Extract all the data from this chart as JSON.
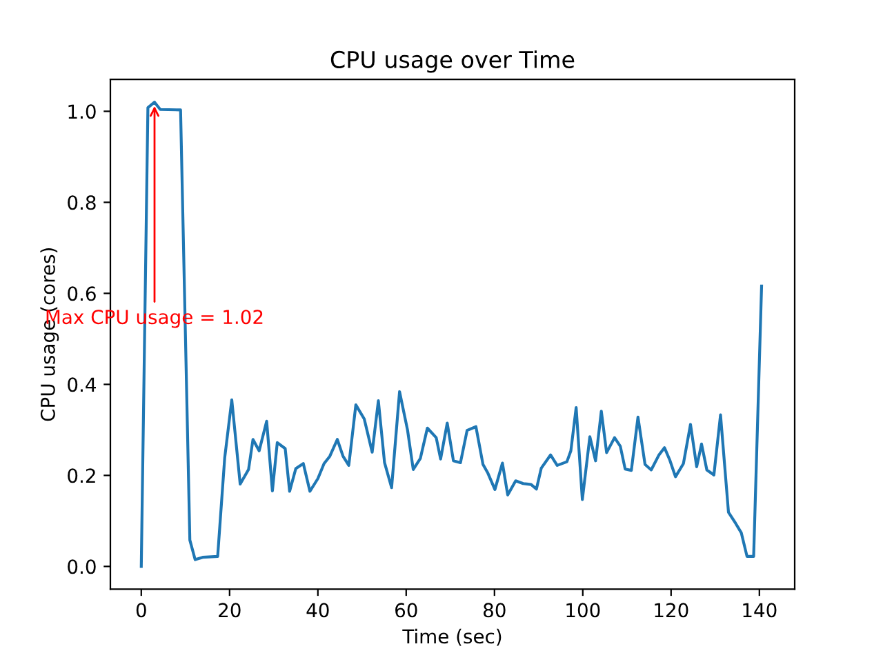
{
  "chart_data": {
    "type": "line",
    "title": "CPU usage over Time",
    "xlabel": "Time (sec)",
    "ylabel": "CPU usage (cores)",
    "x": [
      0,
      1.5,
      3,
      4.3,
      8.9,
      11.0,
      12.2,
      13.9,
      17.3,
      18.9,
      20.5,
      22.4,
      24.3,
      25.3,
      26.7,
      28.4,
      29.7,
      30.8,
      32.6,
      33.6,
      35.0,
      36.7,
      38.2,
      40.0,
      41.4,
      42.7,
      44.4,
      45.7,
      47.0,
      48.6,
      50.5,
      52.3,
      53.7,
      55.1,
      56.7,
      58.5,
      60.3,
      61.6,
      63.2,
      64.8,
      66.8,
      67.8,
      69.3,
      70.7,
      72.3,
      73.8,
      75.8,
      77.4,
      78.5,
      80.1,
      81.8,
      83.0,
      84.8,
      86.5,
      88.3,
      89.5,
      90.6,
      92.7,
      94.2,
      96.4,
      97.3,
      98.5,
      99.9,
      101.6,
      102.9,
      104.2,
      105.4,
      107.2,
      108.5,
      109.6,
      111.0,
      112.5,
      114.1,
      115.5,
      117.2,
      118.5,
      119.7,
      121.0,
      122.8,
      124.4,
      125.8,
      126.9,
      128.1,
      129.7,
      131.2,
      133.0,
      134.6,
      135.9,
      137.2,
      138.7,
      140.5
    ],
    "series": [
      {
        "color": "#1f77b4",
        "values": [
          0.0,
          1.008,
          1.02,
          1.004,
          1.003,
          0.058,
          0.015,
          0.02,
          0.022,
          0.239,
          0.366,
          0.181,
          0.213,
          0.279,
          0.254,
          0.319,
          0.166,
          0.272,
          0.259,
          0.165,
          0.215,
          0.226,
          0.165,
          0.193,
          0.226,
          0.242,
          0.279,
          0.242,
          0.222,
          0.355,
          0.324,
          0.251,
          0.364,
          0.228,
          0.173,
          0.384,
          0.3,
          0.213,
          0.237,
          0.304,
          0.283,
          0.236,
          0.315,
          0.232,
          0.228,
          0.299,
          0.307,
          0.224,
          0.205,
          0.169,
          0.227,
          0.157,
          0.188,
          0.182,
          0.18,
          0.17,
          0.216,
          0.245,
          0.222,
          0.23,
          0.254,
          0.349,
          0.147,
          0.285,
          0.232,
          0.341,
          0.25,
          0.283,
          0.264,
          0.214,
          0.211,
          0.328,
          0.224,
          0.212,
          0.244,
          0.261,
          0.234,
          0.197,
          0.226,
          0.312,
          0.219,
          0.269,
          0.212,
          0.201,
          0.333,
          0.119,
          0.095,
          0.074,
          0.022,
          0.022,
          0.616
        ]
      }
    ],
    "annotations": [
      {
        "text": "Max CPU usage = 1.02",
        "x": 3,
        "y": 1.02
      }
    ],
    "xlim": [
      -7,
      148
    ],
    "ylim": [
      -0.05,
      1.07
    ],
    "xticks": [
      0,
      20,
      40,
      60,
      80,
      100,
      120,
      140
    ],
    "yticks": [
      {
        "value": 0,
        "label": "0.0"
      },
      {
        "value": 0.2,
        "label": "0.2"
      },
      {
        "value": 0.4,
        "label": "0.4"
      },
      {
        "value": 0.6,
        "label": "0.6"
      },
      {
        "value": 0.8,
        "label": "0.8"
      },
      {
        "value": 1.0,
        "label": "1.0"
      }
    ],
    "grid": false,
    "legend": false,
    "marker": "none",
    "line_style": "solid"
  }
}
